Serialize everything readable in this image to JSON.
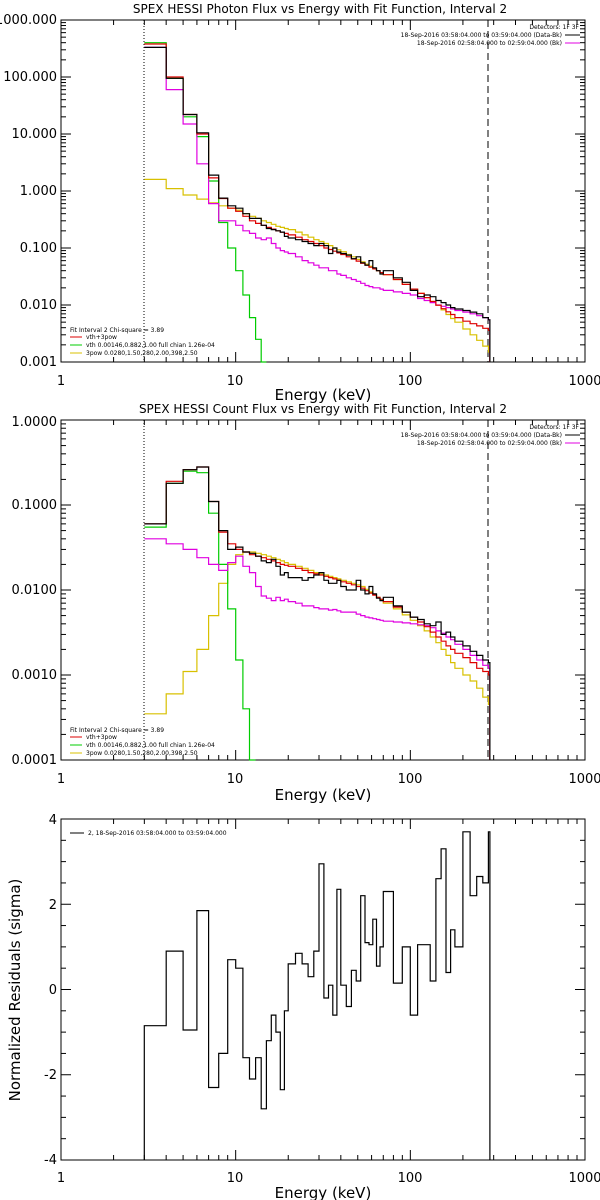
{
  "charts": [
    {
      "title": "SPEX HESSI Photon Flux vs Energy with Fit Function, Interval 2",
      "xlabel": "Energy (keV)",
      "xticks": [
        "1",
        "10",
        "100",
        "1000"
      ],
      "yticks": [
        "0.001",
        "0.010",
        "0.100",
        "1.000",
        "10.000",
        "100.000",
        "1000.000"
      ],
      "detectors": "Detectors: 1F 3F",
      "time_range": "18-Sep-2016 03:58:04.000 to 03:59:04.000 (Data-Bk)",
      "bk_range": "18-Sep-2016 02:58:04.000 to 02:59:04.000 (Bk)",
      "fit_title": "Fit Interval  2   Chi-square = 3.89",
      "legend": [
        "vth+3pow",
        "vth 0.00146,0.882,1.00  full chian 1.26e-04",
        "3pow 0.0280,1.50,280,2.00,398,2.50"
      ]
    },
    {
      "title": "SPEX HESSI Count Flux vs Energy with Fit Function, Interval 2",
      "xlabel": "Energy (keV)",
      "xticks": [
        "1",
        "10",
        "100",
        "1000"
      ],
      "yticks": [
        "0.0001",
        "0.0010",
        "0.0100",
        "0.1000",
        "1.0000"
      ],
      "detectors": "Detectors: 1F 3F",
      "time_range": "18-Sep-2016 03:58:04.000 to 03:59:04.000 (Data-Bk)",
      "bk_range": "18-Sep-2016 02:58:04.000 to 02:59:04.000 (Bk)",
      "fit_title": "Fit Interval  2   Chi-square = 3.89",
      "legend": [
        "vth+3pow",
        "vth 0.00146,0.882,1.00  full chian 1.26e-04",
        "3pow 0.0280,1.50,280,2.00,398,2.50"
      ]
    },
    {
      "xlabel": "Energy (keV)",
      "ylabel": "Normalized Residuals (sigma)",
      "xticks": [
        "1",
        "10",
        "100",
        "1000"
      ],
      "yticks": [
        "-4",
        "-2",
        "0",
        "2",
        "4"
      ],
      "legend_entry": "2, 18-Sep-2016 03:58:04.000 to 03:59:04.000"
    }
  ],
  "colors": {
    "data": "#000000",
    "total_fit": "#dd0000",
    "thermal": "#00cc00",
    "power_law": "#d8c000",
    "background": "#e000e0"
  },
  "chart_data": [
    {
      "type": "line",
      "title": "SPEX HESSI Photon Flux vs Energy with Fit Function, Interval 2",
      "xlabel": "Energy (keV)",
      "x_scale": "log",
      "y_scale": "log",
      "xlim": [
        1,
        1000
      ],
      "ylim": [
        0.001,
        1000
      ],
      "energy_range_markers_keV": [
        3,
        280
      ],
      "x": [
        3.0,
        4.0,
        5.0,
        6.0,
        7.0,
        8.0,
        9.0,
        10.0,
        11.0,
        12.0,
        13.0,
        14.0,
        15.0,
        16.0,
        17.0,
        18.0,
        19.0,
        20.0,
        22.0,
        24.0,
        26.0,
        28.0,
        30.0,
        32.0,
        34.0,
        36.0,
        38.0,
        40.0,
        43.0,
        46.0,
        49.0,
        52.0,
        55.0,
        58.0,
        61.0,
        64.0,
        67.0,
        70.0,
        80.0,
        90.0,
        100.0,
        110.0,
        120.0,
        130.0,
        140.0,
        150.0,
        160.0,
        170.0,
        180.0,
        200.0,
        220.0,
        240.0,
        260.0,
        280.0
      ],
      "series": [
        {
          "name": "vth+3pow",
          "values": [
            380.0,
            100.0,
            22.0,
            10.0,
            1.7,
            0.74,
            0.5,
            0.44,
            0.36,
            0.3,
            0.27,
            0.25,
            0.23,
            0.215,
            0.2,
            0.19,
            0.18,
            0.17,
            0.155,
            0.14,
            0.13,
            0.12,
            0.11,
            0.1,
            0.094,
            0.088,
            0.082,
            0.077,
            0.07,
            0.064,
            0.059,
            0.054,
            0.05,
            0.046,
            0.043,
            0.04,
            0.037,
            0.034,
            0.028,
            0.023,
            0.019,
            0.016,
            0.0135,
            0.0115,
            0.0099,
            0.0086,
            0.0076,
            0.0068,
            0.006,
            0.0052,
            0.0047,
            0.0043,
            0.0039,
            0.0036
          ]
        },
        {
          "name": "vth",
          "values": [
            400.0,
            95.0,
            20.0,
            9.0,
            1.5,
            0.28,
            0.1,
            0.04,
            0.015,
            0.006,
            0.0025,
            0.001,
            null,
            null,
            null,
            null,
            null,
            null,
            null,
            null,
            null,
            null,
            null,
            null,
            null,
            null,
            null,
            null,
            null,
            null,
            null,
            null,
            null,
            null,
            null,
            null,
            null,
            null,
            null,
            null,
            null,
            null,
            null,
            null,
            null,
            null,
            null,
            null,
            null,
            null,
            null,
            null,
            null,
            null
          ]
        },
        {
          "name": "3pow",
          "values": [
            1.6,
            1.1,
            0.85,
            0.72,
            0.62,
            0.55,
            0.5,
            0.46,
            0.4,
            0.36,
            0.33,
            0.3,
            0.28,
            0.26,
            0.24,
            0.23,
            0.22,
            0.21,
            0.19,
            0.17,
            0.155,
            0.14,
            0.13,
            0.12,
            0.11,
            0.1,
            0.093,
            0.086,
            0.077,
            0.07,
            0.063,
            0.057,
            0.052,
            0.048,
            0.044,
            0.04,
            0.037,
            0.034,
            0.028,
            0.023,
            0.019,
            0.016,
            0.0135,
            0.0115,
            0.0099,
            0.0082,
            0.0068,
            0.0058,
            0.005,
            0.0038,
            0.003,
            0.0024,
            0.0019,
            0.0015
          ]
        },
        {
          "name": "Data-Bk",
          "values": [
            330.0,
            95.0,
            22.0,
            10.5,
            1.9,
            0.75,
            0.55,
            0.5,
            0.4,
            0.33,
            0.33,
            0.25,
            0.22,
            0.21,
            0.2,
            0.19,
            0.16,
            0.15,
            0.14,
            0.13,
            0.12,
            0.11,
            0.12,
            0.11,
            0.08,
            0.1,
            0.085,
            0.08,
            0.075,
            0.065,
            0.07,
            0.055,
            0.05,
            0.06,
            0.045,
            0.04,
            0.035,
            0.04,
            0.03,
            0.025,
            0.018,
            0.014,
            0.015,
            0.014,
            0.012,
            0.011,
            0.01,
            0.009,
            0.0085,
            0.008,
            0.0075,
            0.007,
            0.006,
            0.0055
          ]
        },
        {
          "name": "Bk",
          "values": [
            330.0,
            60.0,
            15.0,
            3.0,
            0.6,
            0.3,
            0.3,
            0.25,
            0.2,
            0.18,
            0.15,
            0.14,
            0.15,
            0.12,
            0.1,
            0.09,
            0.085,
            0.08,
            0.07,
            0.06,
            0.055,
            0.05,
            0.045,
            0.045,
            0.04,
            0.04,
            0.035,
            0.033,
            0.03,
            0.028,
            0.026,
            0.024,
            0.022,
            0.021,
            0.02,
            0.02,
            0.019,
            0.018,
            0.017,
            0.016,
            0.015,
            0.013,
            0.012,
            0.011,
            0.01,
            0.0095,
            0.009,
            0.0085,
            0.008,
            0.0075,
            0.007,
            0.0065,
            0.006,
            0.0055
          ]
        }
      ]
    },
    {
      "type": "line",
      "title": "SPEX HESSI Count Flux vs Energy with Fit Function, Interval 2",
      "xlabel": "Energy (keV)",
      "x_scale": "log",
      "y_scale": "log",
      "xlim": [
        1,
        1000
      ],
      "ylim": [
        0.0001,
        1
      ],
      "energy_range_markers_keV": [
        3,
        280
      ],
      "x": [
        3.0,
        4.0,
        5.0,
        6.0,
        7.0,
        8.0,
        9.0,
        10.0,
        11.0,
        12.0,
        13.0,
        14.0,
        15.0,
        16.0,
        17.0,
        18.0,
        19.0,
        20.0,
        22.0,
        24.0,
        26.0,
        28.0,
        30.0,
        32.0,
        34.0,
        36.0,
        38.0,
        40.0,
        43.0,
        46.0,
        49.0,
        52.0,
        55.0,
        58.0,
        61.0,
        64.0,
        67.0,
        70.0,
        80.0,
        90.0,
        100.0,
        110.0,
        120.0,
        130.0,
        140.0,
        150.0,
        160.0,
        170.0,
        180.0,
        200.0,
        220.0,
        240.0,
        260.0,
        280.0
      ],
      "series": [
        {
          "name": "vth+3pow",
          "values": [
            0.06,
            0.19,
            0.26,
            0.28,
            0.11,
            0.048,
            0.035,
            0.03,
            0.028,
            0.026,
            0.025,
            0.024,
            0.023,
            0.022,
            0.021,
            0.02,
            0.0195,
            0.019,
            0.018,
            0.017,
            0.016,
            0.0155,
            0.015,
            0.0145,
            0.014,
            0.0135,
            0.013,
            0.0125,
            0.012,
            0.0115,
            0.011,
            0.0105,
            0.0098,
            0.0092,
            0.0087,
            0.0082,
            0.0078,
            0.0073,
            0.0063,
            0.0055,
            0.0048,
            0.0042,
            0.0037,
            0.0032,
            0.0028,
            0.0025,
            0.0022,
            0.002,
            0.0018,
            0.0016,
            0.0014,
            0.0012,
            0.0011,
            0.001
          ]
        },
        {
          "name": "vth",
          "values": [
            0.055,
            0.18,
            0.25,
            0.24,
            0.08,
            0.02,
            0.006,
            0.0015,
            0.0004,
            0.0001,
            null,
            null,
            null,
            null,
            null,
            null,
            null,
            null,
            null,
            null,
            null,
            null,
            null,
            null,
            null,
            null,
            null,
            null,
            null,
            null,
            null,
            null,
            null,
            null,
            null,
            null,
            null,
            null,
            null,
            null,
            null,
            null,
            null,
            null,
            null,
            null,
            null,
            null,
            null,
            null,
            null,
            null,
            null,
            null
          ]
        },
        {
          "name": "3pow",
          "values": [
            0.00035,
            0.0006,
            0.0011,
            0.002,
            0.005,
            0.012,
            0.02,
            0.026,
            0.028,
            0.028,
            0.027,
            0.026,
            0.025,
            0.024,
            0.023,
            0.022,
            0.021,
            0.02,
            0.019,
            0.018,
            0.017,
            0.016,
            0.0155,
            0.015,
            0.0145,
            0.014,
            0.0135,
            0.013,
            0.0125,
            0.012,
            0.0115,
            0.011,
            0.0102,
            0.0095,
            0.0088,
            0.0082,
            0.0076,
            0.007,
            0.006,
            0.0051,
            0.0044,
            0.0038,
            0.0033,
            0.0028,
            0.0024,
            0.002,
            0.0017,
            0.0014,
            0.0012,
            0.001,
            0.00085,
            0.0007,
            0.00055,
            0.00045
          ]
        },
        {
          "name": "Data-Bk",
          "values": [
            0.06,
            0.18,
            0.26,
            0.28,
            0.11,
            0.05,
            0.03,
            0.032,
            0.028,
            0.027,
            0.025,
            0.022,
            0.021,
            0.023,
            0.019,
            0.015,
            0.016,
            0.014,
            0.014,
            0.013,
            0.014,
            0.015,
            0.016,
            0.013,
            0.012,
            0.012,
            0.013,
            0.011,
            0.01,
            0.01,
            0.013,
            0.01,
            0.009,
            0.011,
            0.009,
            0.008,
            0.0075,
            0.0082,
            0.0065,
            0.0055,
            0.0048,
            0.0045,
            0.004,
            0.0038,
            0.0042,
            0.003,
            0.0032,
            0.0028,
            0.0025,
            0.0022,
            0.0019,
            0.0017,
            0.0015,
            0.0014
          ]
        },
        {
          "name": "Bk",
          "values": [
            0.04,
            0.035,
            0.03,
            0.024,
            0.02,
            0.017,
            0.021,
            0.025,
            0.019,
            0.016,
            0.011,
            0.0085,
            0.008,
            0.0075,
            0.0082,
            0.0075,
            0.0078,
            0.0073,
            0.007,
            0.0065,
            0.0065,
            0.0062,
            0.006,
            0.006,
            0.0058,
            0.0059,
            0.0057,
            0.0055,
            0.0055,
            0.0055,
            0.0052,
            0.005,
            0.0048,
            0.0047,
            0.0046,
            0.0045,
            0.0044,
            0.0043,
            0.0042,
            0.0041,
            0.004,
            0.0039,
            0.0038,
            0.0036,
            0.0033,
            0.0031,
            0.0028,
            0.0026,
            0.0023,
            0.002,
            0.0017,
            0.0015,
            0.0013,
            0.0012
          ]
        }
      ]
    },
    {
      "type": "line",
      "xlabel": "Energy (keV)",
      "ylabel": "Normalized Residuals (sigma)",
      "x_scale": "log",
      "xlim": [
        1,
        1000
      ],
      "ylim": [
        -4,
        4
      ],
      "x": [
        3.0,
        4.0,
        5.0,
        6.0,
        7.0,
        8.0,
        9.0,
        10.0,
        11.0,
        12.0,
        13.0,
        14.0,
        15.0,
        16.0,
        17.0,
        18.0,
        19.0,
        20.0,
        22.0,
        24.0,
        26.0,
        28.0,
        30.0,
        32.0,
        34.0,
        36.0,
        38.0,
        40.0,
        43.0,
        46.0,
        49.0,
        52.0,
        55.0,
        58.0,
        61.0,
        64.0,
        67.0,
        70.0,
        80.0,
        90.0,
        100.0,
        110.0,
        120.0,
        130.0,
        140.0,
        150.0,
        160.0,
        170.0,
        180.0,
        200.0,
        220.0,
        240.0,
        260.0,
        280.0
      ],
      "series": [
        {
          "name": "2, 18-Sep-2016 03:58:04.000 to 03:59:04.000",
          "values": [
            -0.85,
            0.9,
            -0.95,
            1.85,
            -2.3,
            -1.5,
            0.7,
            0.5,
            -1.6,
            -2.1,
            -1.6,
            -2.8,
            -1.2,
            -0.6,
            -1.0,
            -2.35,
            -0.5,
            0.6,
            0.85,
            0.6,
            0.3,
            0.9,
            2.95,
            -0.2,
            0.1,
            -0.6,
            2.35,
            0.1,
            -0.4,
            0.45,
            0.2,
            2.2,
            1.1,
            1.05,
            1.65,
            0.55,
            1.0,
            2.3,
            0.15,
            1.0,
            -0.6,
            1.05,
            1.05,
            0.2,
            2.6,
            3.3,
            0.4,
            1.4,
            1.0,
            3.7,
            2.2,
            2.65,
            2.5,
            3.7
          ]
        }
      ]
    }
  ]
}
